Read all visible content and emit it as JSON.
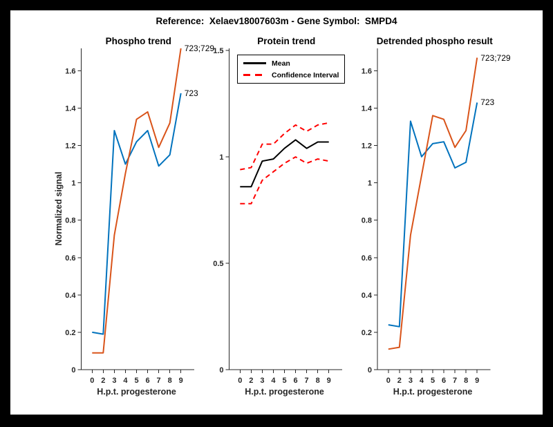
{
  "window": {
    "background": "#000000",
    "figure_background": "#ffffff"
  },
  "title": "Reference:  Xelaev18007603m - Gene Symbol:  SMPD4",
  "colors": {
    "blue": "#0072BD",
    "orange": "#D95319",
    "red": "#FF0000",
    "black": "#000000",
    "axis": "#262626"
  },
  "chart_data": [
    {
      "type": "line",
      "title": "Phospho trend",
      "xlabel": "H.p.t. progesterone",
      "ylabel": "Normalized signal",
      "x_tick_labels": [
        "0",
        "2",
        "3",
        "4",
        "5",
        "6",
        "7",
        "8",
        "9"
      ],
      "y_ticks": [
        0,
        0.2,
        0.4,
        0.6,
        0.8,
        1,
        1.2,
        1.4,
        1.6
      ],
      "y_tick_labels": [
        "0",
        "0.2",
        "0.4",
        "0.6",
        "0.8",
        "1",
        "1.2",
        "1.4",
        "1.6"
      ],
      "ylim": [
        0,
        1.72
      ],
      "grid": false,
      "legend": null,
      "series": [
        {
          "name": "723",
          "color_key": "blue",
          "style": "solid",
          "end_label": "723",
          "values": [
            0.2,
            0.19,
            1.28,
            1.1,
            1.22,
            1.28,
            1.09,
            1.15,
            1.48
          ]
        },
        {
          "name": "723;729",
          "color_key": "orange",
          "style": "solid",
          "end_label": "723;729",
          "values": [
            0.09,
            0.09,
            0.72,
            1.05,
            1.34,
            1.38,
            1.19,
            1.32,
            1.72
          ]
        }
      ]
    },
    {
      "type": "line",
      "title": "Protein trend",
      "xlabel": "H.p.t. progesterone",
      "ylabel": "",
      "x_tick_labels": [
        "0",
        "2",
        "3",
        "4",
        "5",
        "6",
        "7",
        "8",
        "9"
      ],
      "y_ticks": [
        0,
        0.5,
        1,
        1.5
      ],
      "y_tick_labels": [
        "0",
        "0.5",
        "1",
        "1.5"
      ],
      "ylim": [
        0,
        1.51
      ],
      "grid": false,
      "legend": {
        "position": "northwest",
        "entries": [
          {
            "label": "Mean",
            "color_key": "black",
            "style": "solid"
          },
          {
            "label": "Confidence Interval",
            "color_key": "red",
            "style": "dashed"
          }
        ]
      },
      "series": [
        {
          "name": "Mean",
          "color_key": "black",
          "style": "solid",
          "end_label": null,
          "values": [
            0.86,
            0.86,
            0.98,
            0.99,
            1.04,
            1.08,
            1.04,
            1.07,
            1.07
          ]
        },
        {
          "name": "Confidence Interval upper",
          "color_key": "red",
          "style": "dashed",
          "end_label": null,
          "values": [
            0.94,
            0.95,
            1.06,
            1.06,
            1.11,
            1.15,
            1.12,
            1.15,
            1.16
          ]
        },
        {
          "name": "Confidence Interval lower",
          "color_key": "red",
          "style": "dashed",
          "end_label": null,
          "values": [
            0.78,
            0.78,
            0.89,
            0.93,
            0.97,
            1.0,
            0.97,
            0.99,
            0.98
          ]
        }
      ]
    },
    {
      "type": "line",
      "title": "Detrended phospho result",
      "xlabel": "H.p.t. progesterone",
      "ylabel": "",
      "x_tick_labels": [
        "0",
        "2",
        "3",
        "4",
        "5",
        "6",
        "7",
        "8",
        "9"
      ],
      "y_ticks": [
        0,
        0.2,
        0.4,
        0.6,
        0.8,
        1,
        1.2,
        1.4,
        1.6
      ],
      "y_tick_labels": [
        "0",
        "0.2",
        "0.4",
        "0.6",
        "0.8",
        "1",
        "1.2",
        "1.4",
        "1.6"
      ],
      "ylim": [
        0,
        1.72
      ],
      "grid": false,
      "legend": null,
      "series": [
        {
          "name": "723",
          "color_key": "blue",
          "style": "solid",
          "end_label": "723",
          "values": [
            0.24,
            0.23,
            1.33,
            1.14,
            1.21,
            1.22,
            1.08,
            1.11,
            1.43
          ]
        },
        {
          "name": "723;729",
          "color_key": "orange",
          "style": "solid",
          "end_label": "723;729",
          "values": [
            0.11,
            0.12,
            0.72,
            1.04,
            1.36,
            1.34,
            1.19,
            1.28,
            1.67
          ]
        }
      ]
    }
  ]
}
